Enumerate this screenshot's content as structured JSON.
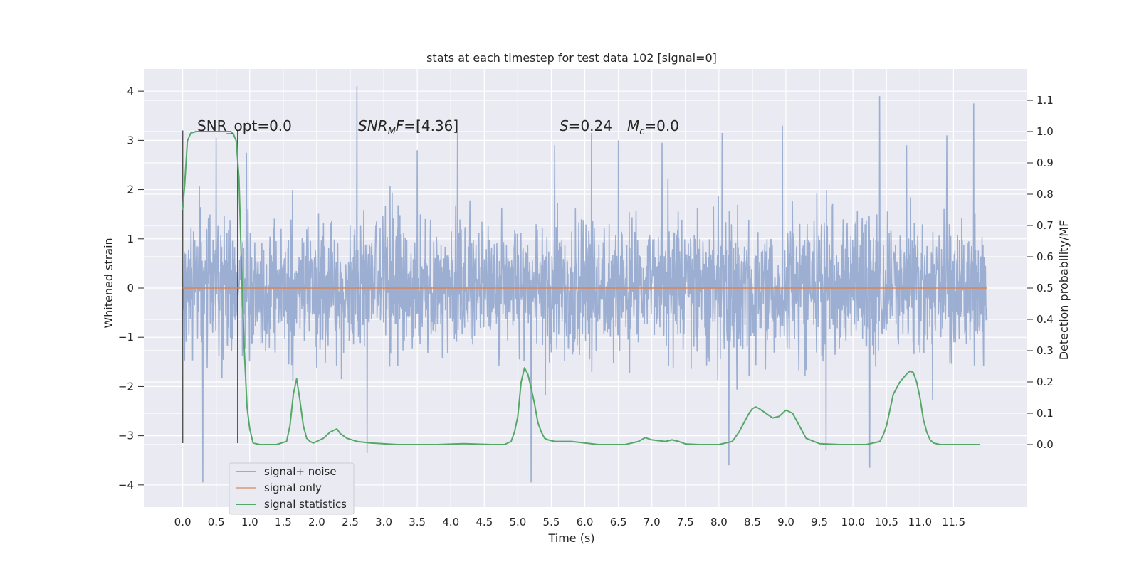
{
  "chart_data": {
    "type": "line",
    "title": "stats at each timestep for test data 102 [signal=0]",
    "xlabel": "Time (s)",
    "ylabel": "Whitened strain",
    "y2label": "Detection probability/MF",
    "xlim": [
      -0.58,
      12.6
    ],
    "ylim": [
      -4.45,
      4.45
    ],
    "y2lim": [
      -0.2,
      1.2
    ],
    "grid": true,
    "x_ticks": [
      "0.0",
      "0.5",
      "1.0",
      "1.5",
      "2.0",
      "2.5",
      "3.0",
      "3.5",
      "4.0",
      "4.5",
      "5.0",
      "5.5",
      "6.0",
      "6.5",
      "7.0",
      "7.5",
      "8.0",
      "8.5",
      "9.0",
      "9.5",
      "10.0",
      "10.5",
      "11.0",
      "11.5"
    ],
    "y_ticks": [
      "4",
      "3",
      "2",
      "1",
      "0",
      "−1",
      "−2",
      "−3",
      "−4"
    ],
    "y2_ticks": [
      "1.1",
      "1.0",
      "0.9",
      "0.8",
      "0.7",
      "0.6",
      "0.5",
      "0.4",
      "0.3",
      "0.2",
      "0.1",
      "0.0"
    ],
    "annotations": {
      "snr_opt": "SNR_opt=0.0",
      "snr_mf_sym": "SNR",
      "snr_mf_sub": "M",
      "snr_mf_sym2": "F",
      "snr_mf_val": "=[4.36]",
      "s_sym": "S",
      "s_val": "=0.24",
      "mc_sym": "M",
      "mc_sub": "c",
      "mc_val": "=0.0"
    },
    "window_markers": [
      0.0,
      0.82
    ],
    "legend": {
      "position": "lower-left",
      "entries": [
        "signal+ noise",
        "signal only",
        "signal statistics"
      ]
    },
    "series": [
      {
        "name": "signal+ noise",
        "color": "#98acd0",
        "x_range": [
          0.0,
          12.0
        ],
        "typical_range": [
          -2.0,
          2.0
        ],
        "peaks": [
          [
            0.3,
            -3.95
          ],
          [
            0.5,
            3.05
          ],
          [
            0.95,
            2.75
          ],
          [
            2.6,
            4.1
          ],
          [
            2.75,
            -3.35
          ],
          [
            3.5,
            2.8
          ],
          [
            4.1,
            3.15
          ],
          [
            5.2,
            -3.95
          ],
          [
            5.55,
            2.9
          ],
          [
            6.1,
            3.15
          ],
          [
            6.5,
            3.0
          ],
          [
            7.15,
            2.95
          ],
          [
            8.05,
            3.15
          ],
          [
            8.15,
            -3.6
          ],
          [
            8.95,
            3.3
          ],
          [
            9.6,
            -3.3
          ],
          [
            10.25,
            -3.65
          ],
          [
            10.4,
            3.9
          ],
          [
            10.8,
            2.9
          ],
          [
            11.4,
            3.1
          ],
          [
            11.8,
            3.75
          ]
        ]
      },
      {
        "name": "signal only",
        "color": "#dd8452",
        "x": [
          0.0,
          12.0
        ],
        "y": [
          0.0,
          0.0
        ]
      },
      {
        "name": "signal statistics",
        "color": "#55a868",
        "axis": "right",
        "x": [
          0.0,
          0.03,
          0.07,
          0.12,
          0.2,
          0.3,
          0.45,
          0.6,
          0.72,
          0.76,
          0.8,
          0.84,
          0.88,
          0.92,
          0.96,
          1.0,
          1.05,
          1.15,
          1.4,
          1.55,
          1.6,
          1.65,
          1.7,
          1.75,
          1.8,
          1.85,
          1.9,
          1.95,
          2.0,
          2.1,
          2.2,
          2.3,
          2.35,
          2.45,
          2.6,
          2.8,
          3.2,
          3.8,
          4.2,
          4.6,
          4.8,
          4.9,
          4.95,
          5.0,
          5.05,
          5.1,
          5.15,
          5.2,
          5.25,
          5.3,
          5.35,
          5.4,
          5.45,
          5.55,
          5.8,
          6.0,
          6.2,
          6.6,
          6.8,
          6.9,
          7.0,
          7.2,
          7.3,
          7.4,
          7.5,
          7.7,
          8.0,
          8.2,
          8.3,
          8.4,
          8.45,
          8.5,
          8.55,
          8.6,
          8.7,
          8.8,
          8.9,
          8.95,
          9.0,
          9.1,
          9.2,
          9.3,
          9.5,
          9.8,
          10.2,
          10.4,
          10.45,
          10.5,
          10.55,
          10.6,
          10.7,
          10.8,
          10.85,
          10.9,
          10.95,
          11.0,
          11.05,
          11.1,
          11.15,
          11.2,
          11.3,
          11.5,
          11.8,
          11.9
        ],
        "y": [
          0.75,
          0.83,
          0.97,
          0.995,
          1.0,
          1.0,
          1.0,
          1.0,
          1.0,
          0.99,
          0.97,
          0.85,
          0.55,
          0.3,
          0.12,
          0.05,
          0.005,
          0.0,
          0.0,
          0.01,
          0.06,
          0.16,
          0.21,
          0.14,
          0.06,
          0.02,
          0.01,
          0.005,
          0.01,
          0.02,
          0.04,
          0.05,
          0.035,
          0.02,
          0.01,
          0.005,
          0.0,
          0.0,
          0.003,
          0.0,
          0.0,
          0.01,
          0.04,
          0.09,
          0.2,
          0.245,
          0.225,
          0.18,
          0.13,
          0.07,
          0.04,
          0.02,
          0.015,
          0.01,
          0.01,
          0.005,
          0.0,
          0.0,
          0.01,
          0.022,
          0.015,
          0.01,
          0.015,
          0.01,
          0.002,
          0.0,
          0.0,
          0.01,
          0.04,
          0.08,
          0.1,
          0.115,
          0.12,
          0.115,
          0.1,
          0.085,
          0.09,
          0.1,
          0.11,
          0.1,
          0.06,
          0.02,
          0.003,
          0.0,
          0.0,
          0.01,
          0.03,
          0.06,
          0.11,
          0.16,
          0.2,
          0.225,
          0.235,
          0.23,
          0.2,
          0.15,
          0.08,
          0.04,
          0.015,
          0.005,
          0.0,
          0.0,
          0.0,
          0.0
        ]
      }
    ]
  }
}
